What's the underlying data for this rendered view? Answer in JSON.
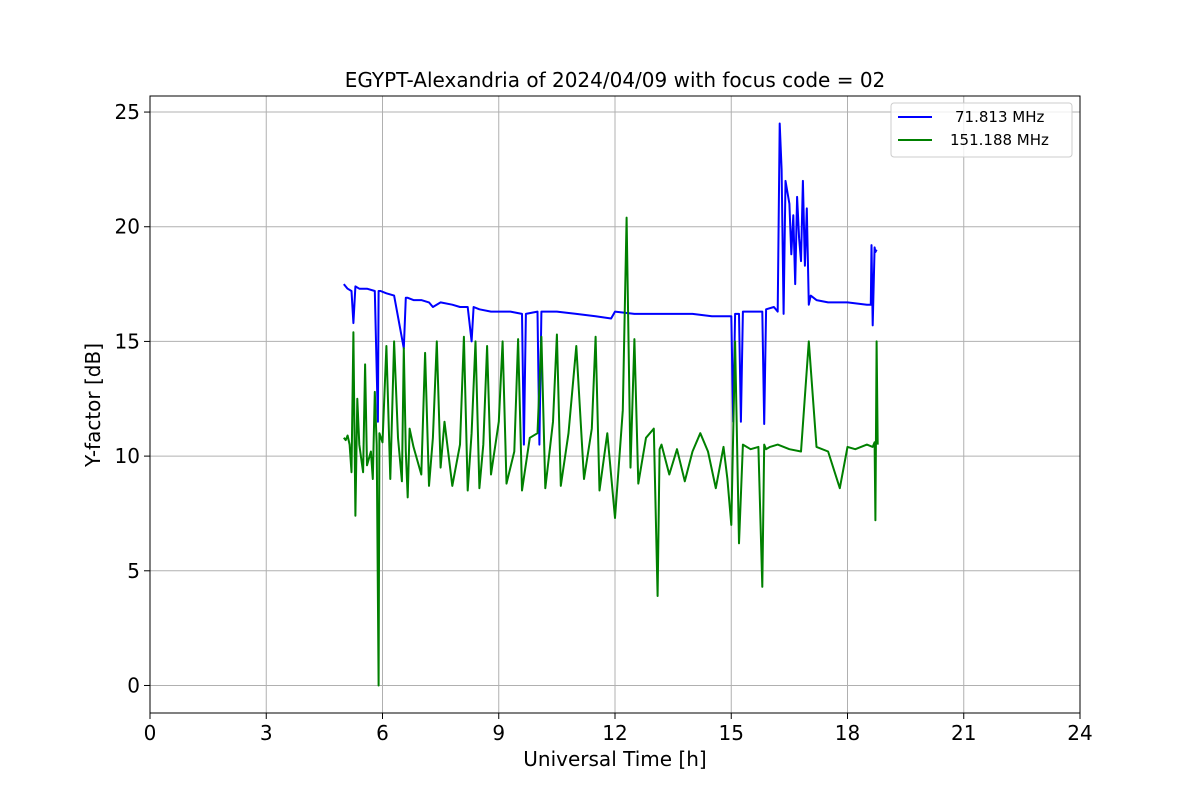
{
  "chart_data": {
    "type": "line",
    "title": "EGYPT-Alexandria of 2024/04/09 with focus code = 02",
    "xlabel": "Universal Time [h]",
    "ylabel": "Y-factor [dB]",
    "xlim": [
      0,
      24
    ],
    "ylim": [
      -1.2,
      25.7
    ],
    "xticks": [
      0,
      3,
      6,
      9,
      12,
      15,
      18,
      21,
      24
    ],
    "yticks": [
      0,
      5,
      10,
      15,
      20,
      25
    ],
    "grid": true,
    "legend_position": "top-right",
    "series": [
      {
        "name": "71.813 MHz",
        "color": "#0000ff",
        "x": [
          5.0,
          5.1,
          5.2,
          5.25,
          5.3,
          5.4,
          5.6,
          5.8,
          5.88,
          5.9,
          5.95,
          6.1,
          6.3,
          6.55,
          6.6,
          6.65,
          6.8,
          7.0,
          7.2,
          7.3,
          7.5,
          7.8,
          8.0,
          8.2,
          8.3,
          8.35,
          8.5,
          8.8,
          9.0,
          9.3,
          9.6,
          9.65,
          9.7,
          10.0,
          10.05,
          10.1,
          10.5,
          11.0,
          11.5,
          11.9,
          12.0,
          12.5,
          13.0,
          13.5,
          14.0,
          14.5,
          15.0,
          15.05,
          15.1,
          15.2,
          15.25,
          15.3,
          15.5,
          15.8,
          15.85,
          15.9,
          16.1,
          16.2,
          16.25,
          16.3,
          16.35,
          16.4,
          16.5,
          16.55,
          16.6,
          16.65,
          16.7,
          16.75,
          16.8,
          16.85,
          16.9,
          16.95,
          17.0,
          17.05,
          17.2,
          17.5,
          18.0,
          18.5,
          18.6,
          18.62,
          18.65,
          18.7,
          18.72,
          18.75
        ],
        "y": [
          17.5,
          17.3,
          17.2,
          15.8,
          17.4,
          17.3,
          17.3,
          17.2,
          11.5,
          17.2,
          17.2,
          17.1,
          17.0,
          14.7,
          16.9,
          16.9,
          16.8,
          16.8,
          16.7,
          16.5,
          16.7,
          16.6,
          16.5,
          16.5,
          15.0,
          16.5,
          16.4,
          16.3,
          16.3,
          16.3,
          16.2,
          10.5,
          16.2,
          16.3,
          10.5,
          16.3,
          16.3,
          16.2,
          16.1,
          16.0,
          16.3,
          16.2,
          16.2,
          16.2,
          16.2,
          16.1,
          16.1,
          11.5,
          16.2,
          16.2,
          11.5,
          16.3,
          16.3,
          16.3,
          11.4,
          16.4,
          16.5,
          16.3,
          24.5,
          22.5,
          16.2,
          22.0,
          21.0,
          18.8,
          20.5,
          17.5,
          21.3,
          19.5,
          18.5,
          22.0,
          18.3,
          20.8,
          16.6,
          17.0,
          16.8,
          16.7,
          16.7,
          16.6,
          16.6,
          19.2,
          15.7,
          19.1,
          18.9,
          19.0
        ]
      },
      {
        "name": "151.188 MHz",
        "color": "#008000",
        "x": [
          5.0,
          5.05,
          5.1,
          5.15,
          5.2,
          5.25,
          5.3,
          5.35,
          5.4,
          5.5,
          5.55,
          5.6,
          5.7,
          5.75,
          5.8,
          5.85,
          5.9,
          5.92,
          6.0,
          6.1,
          6.2,
          6.3,
          6.4,
          6.5,
          6.55,
          6.6,
          6.65,
          6.7,
          6.8,
          7.0,
          7.1,
          7.2,
          7.3,
          7.4,
          7.5,
          7.6,
          7.8,
          8.0,
          8.1,
          8.2,
          8.3,
          8.4,
          8.5,
          8.6,
          8.7,
          8.8,
          9.0,
          9.1,
          9.2,
          9.4,
          9.5,
          9.6,
          9.8,
          10.0,
          10.1,
          10.2,
          10.4,
          10.5,
          10.6,
          10.8,
          11.0,
          11.2,
          11.4,
          11.5,
          11.6,
          11.8,
          12.0,
          12.2,
          12.3,
          12.4,
          12.5,
          12.6,
          12.8,
          13.0,
          13.1,
          13.15,
          13.2,
          13.4,
          13.6,
          13.8,
          14.0,
          14.2,
          14.4,
          14.6,
          14.8,
          14.9,
          15.0,
          15.1,
          15.2,
          15.3,
          15.5,
          15.7,
          15.8,
          15.85,
          15.9,
          16.0,
          16.2,
          16.5,
          16.8,
          17.0,
          17.2,
          17.5,
          17.8,
          18.0,
          18.2,
          18.5,
          18.65,
          18.7,
          18.72,
          18.75,
          18.78
        ],
        "y": [
          10.8,
          10.7,
          10.9,
          10.5,
          9.3,
          15.4,
          7.4,
          12.5,
          10.5,
          9.3,
          14.0,
          9.6,
          10.2,
          9.0,
          12.8,
          10.5,
          0.0,
          11.0,
          10.6,
          14.8,
          9.0,
          15.0,
          10.8,
          8.9,
          14.7,
          10.2,
          8.2,
          11.2,
          10.4,
          9.2,
          14.5,
          8.7,
          10.8,
          15.0,
          9.5,
          11.5,
          8.7,
          10.5,
          15.2,
          8.5,
          11.0,
          15.0,
          8.6,
          10.5,
          14.8,
          9.2,
          11.5,
          15.0,
          8.8,
          10.2,
          15.1,
          8.5,
          10.8,
          11.0,
          15.2,
          8.6,
          11.5,
          15.3,
          8.7,
          11.0,
          14.8,
          9.0,
          11.2,
          15.2,
          8.5,
          11.0,
          7.3,
          12.0,
          20.4,
          9.5,
          15.1,
          8.8,
          10.8,
          11.2,
          3.9,
          10.3,
          10.5,
          9.2,
          10.3,
          8.9,
          10.2,
          11.0,
          10.2,
          8.6,
          10.4,
          9.0,
          7.0,
          15.0,
          6.2,
          10.5,
          10.3,
          10.4,
          4.3,
          10.5,
          10.3,
          10.4,
          10.5,
          10.3,
          10.2,
          15.0,
          10.4,
          10.2,
          8.6,
          10.4,
          10.3,
          10.5,
          10.4,
          10.6,
          7.2,
          15.0,
          10.5
        ]
      }
    ]
  }
}
